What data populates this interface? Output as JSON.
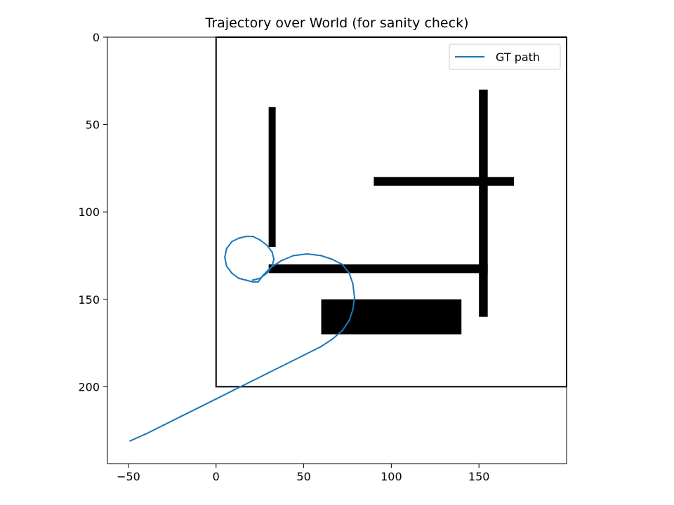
{
  "chart_data": {
    "type": "line",
    "title": "Trajectory over World (for sanity check)",
    "xlabel": "",
    "ylabel": "",
    "xlim": [
      -62,
      200
    ],
    "ylim": [
      244,
      0
    ],
    "y_inverted": true,
    "grid": false,
    "xticks": [
      -50,
      0,
      50,
      100,
      150
    ],
    "yticks": [
      0,
      50,
      100,
      150,
      200
    ],
    "xtick_labels": [
      "−50",
      "0",
      "50",
      "100",
      "150"
    ],
    "ytick_labels": [
      "0",
      "50",
      "100",
      "150",
      "200"
    ],
    "legend": {
      "position": "top-right",
      "entries": [
        {
          "name": "GT path",
          "color": "#1f77b4"
        }
      ]
    },
    "world": {
      "boundary": {
        "x": [
          0,
          200
        ],
        "y": [
          0,
          200
        ]
      },
      "obstacles": [
        {
          "x": [
            30,
            34
          ],
          "y": [
            40,
            120
          ]
        },
        {
          "x": [
            150,
            155
          ],
          "y": [
            30,
            160
          ]
        },
        {
          "x": [
            90,
            170
          ],
          "y": [
            80,
            85
          ]
        },
        {
          "x": [
            30,
            155
          ],
          "y": [
            130,
            135
          ]
        },
        {
          "x": [
            60,
            140
          ],
          "y": [
            150,
            170
          ]
        }
      ],
      "obstacle_color": "#000000"
    },
    "series": [
      {
        "name": "GT path",
        "color": "#1f77b4",
        "x": [
          -49,
          -40,
          -30,
          -20,
          -10,
          0,
          10,
          20,
          30,
          40,
          50,
          60,
          66,
          72,
          76,
          78,
          79,
          78,
          76,
          72,
          66,
          60,
          52,
          44,
          37,
          31,
          27,
          24,
          21,
          17,
          13,
          9,
          6,
          5,
          6,
          9,
          13,
          17,
          21,
          25,
          29,
          32,
          33,
          32,
          29,
          25,
          21
        ],
        "y": [
          231,
          227,
          222,
          217,
          212,
          207,
          202,
          197,
          192,
          187,
          182,
          177,
          173,
          168,
          162,
          156,
          149,
          141,
          135,
          130,
          127,
          125,
          124,
          125,
          128,
          132,
          136,
          140,
          140,
          139,
          138,
          135,
          131,
          126,
          121,
          117,
          115,
          114,
          114,
          116,
          119,
          123,
          127,
          131,
          135,
          138,
          139
        ]
      }
    ]
  }
}
